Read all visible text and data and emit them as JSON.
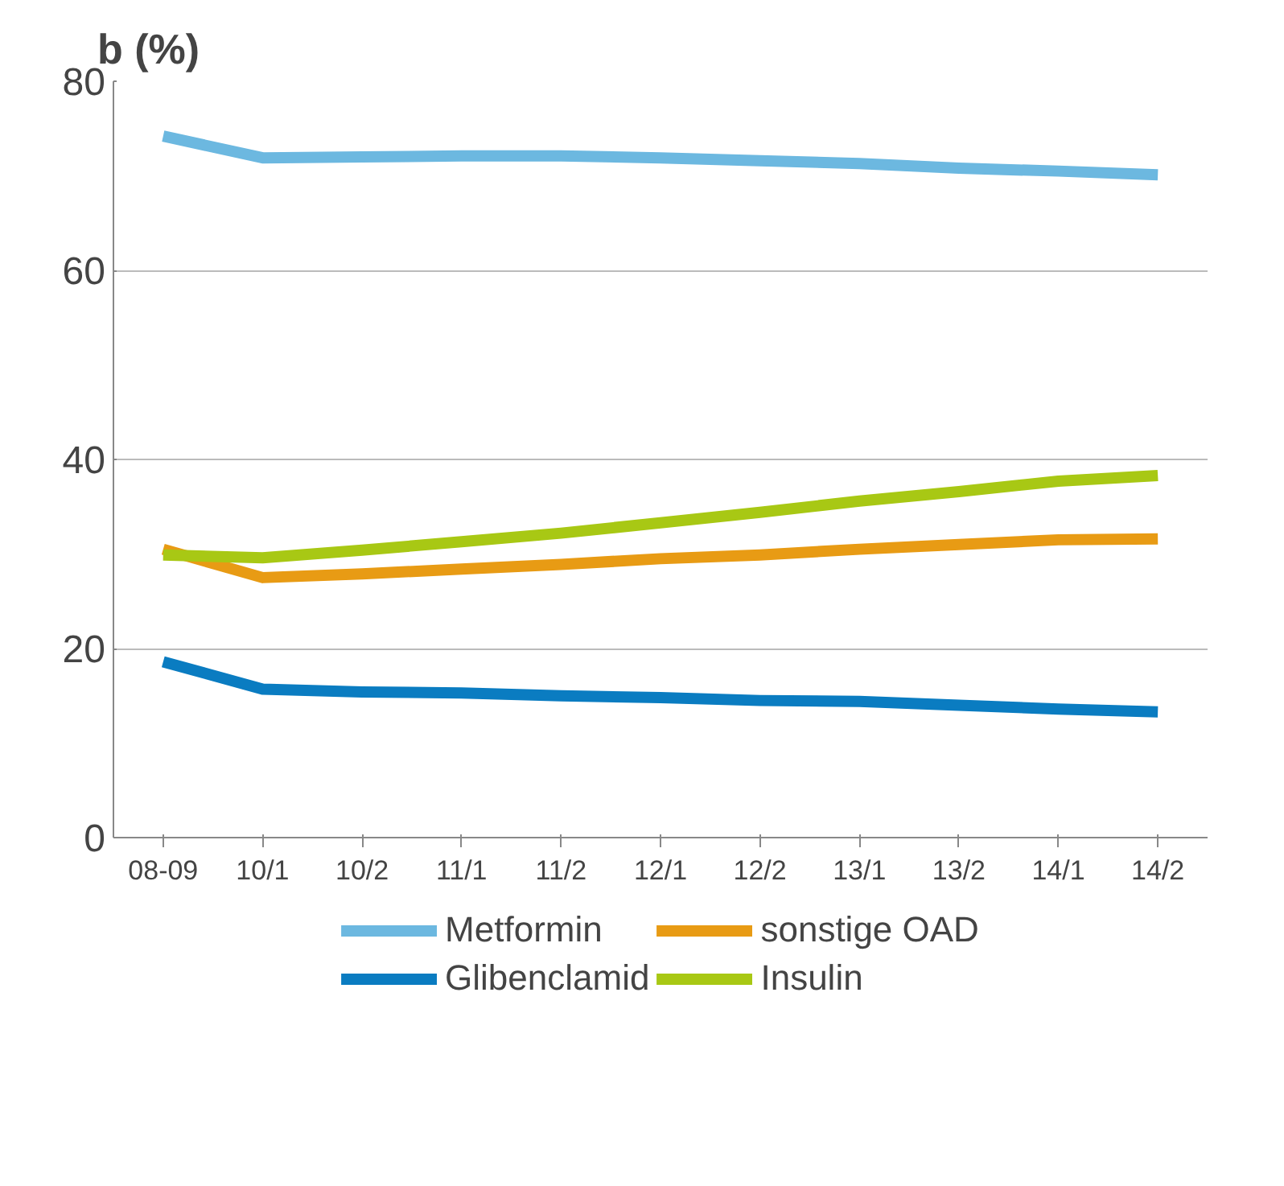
{
  "chart_data": {
    "type": "line",
    "title": "b (%)",
    "categories": [
      "08-09",
      "10/1",
      "10/2",
      "11/1",
      "11/2",
      "12/1",
      "12/2",
      "13/1",
      "13/2",
      "14/1",
      "14/2"
    ],
    "series": [
      {
        "name": "Metformin",
        "color": "#6cb8e0",
        "values": [
          74.2,
          71.9,
          72.0,
          72.1,
          72.1,
          71.9,
          71.6,
          71.3,
          70.8,
          70.5,
          70.1
        ]
      },
      {
        "name": "Glibenclamid",
        "color": "#0a7cc1",
        "values": [
          18.6,
          15.7,
          15.4,
          15.3,
          15.0,
          14.8,
          14.5,
          14.4,
          14.0,
          13.6,
          13.3
        ]
      },
      {
        "name": "sonstige OAD",
        "color": "#e89b14",
        "values": [
          30.5,
          27.5,
          27.9,
          28.4,
          28.9,
          29.5,
          29.9,
          30.5,
          31.0,
          31.5,
          31.6
        ]
      },
      {
        "name": "Insulin",
        "color": "#a8c814",
        "values": [
          29.9,
          29.6,
          30.4,
          31.3,
          32.2,
          33.3,
          34.4,
          35.6,
          36.6,
          37.7,
          38.3
        ]
      }
    ],
    "ylim": [
      0,
      80
    ],
    "yticks": [
      0,
      20,
      40,
      60,
      80
    ],
    "grid": "y",
    "legend": "bottom",
    "marker": "none",
    "line_style": "solid"
  }
}
